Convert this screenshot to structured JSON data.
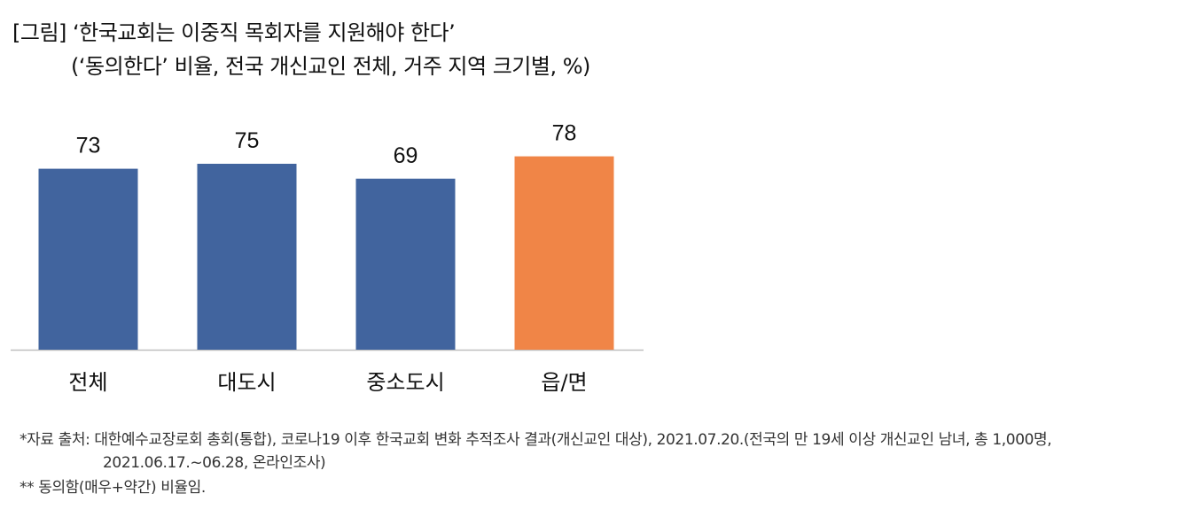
{
  "chart_data": {
    "type": "bar",
    "title": "[그림] ‘한국교회는 이중직 목회자를 지원해야 한다’",
    "subtitle": "(‘동의한다’ 비율, 전국 개신교인 전체, 거주 지역 크기별, %)",
    "categories": [
      "전체",
      "대도시",
      "중소도시",
      "읍/면"
    ],
    "values": [
      73,
      75,
      69,
      78
    ],
    "data_labels": [
      "73",
      "75",
      "69",
      "78"
    ],
    "colors": [
      "#41649e",
      "#41649e",
      "#41649e",
      "#f08547"
    ],
    "ylim": [
      0,
      100
    ],
    "xlabel": "",
    "ylabel": "",
    "grid": false,
    "legend": "none"
  },
  "footnotes": {
    "source_line1": "*자료 출처: 대한예수교장로회 총회(통합), 코로나19 이후 한국교회 변화 추적조사 결과(개신교인 대상), 2021.07.20.(전국의 만 19세 이상 개신교인 남녀, 총 1,000명,",
    "source_line2": "2021.06.17.~06.28, 온라인조사)",
    "note": "** 동의함(매우+약간) 비율임."
  }
}
